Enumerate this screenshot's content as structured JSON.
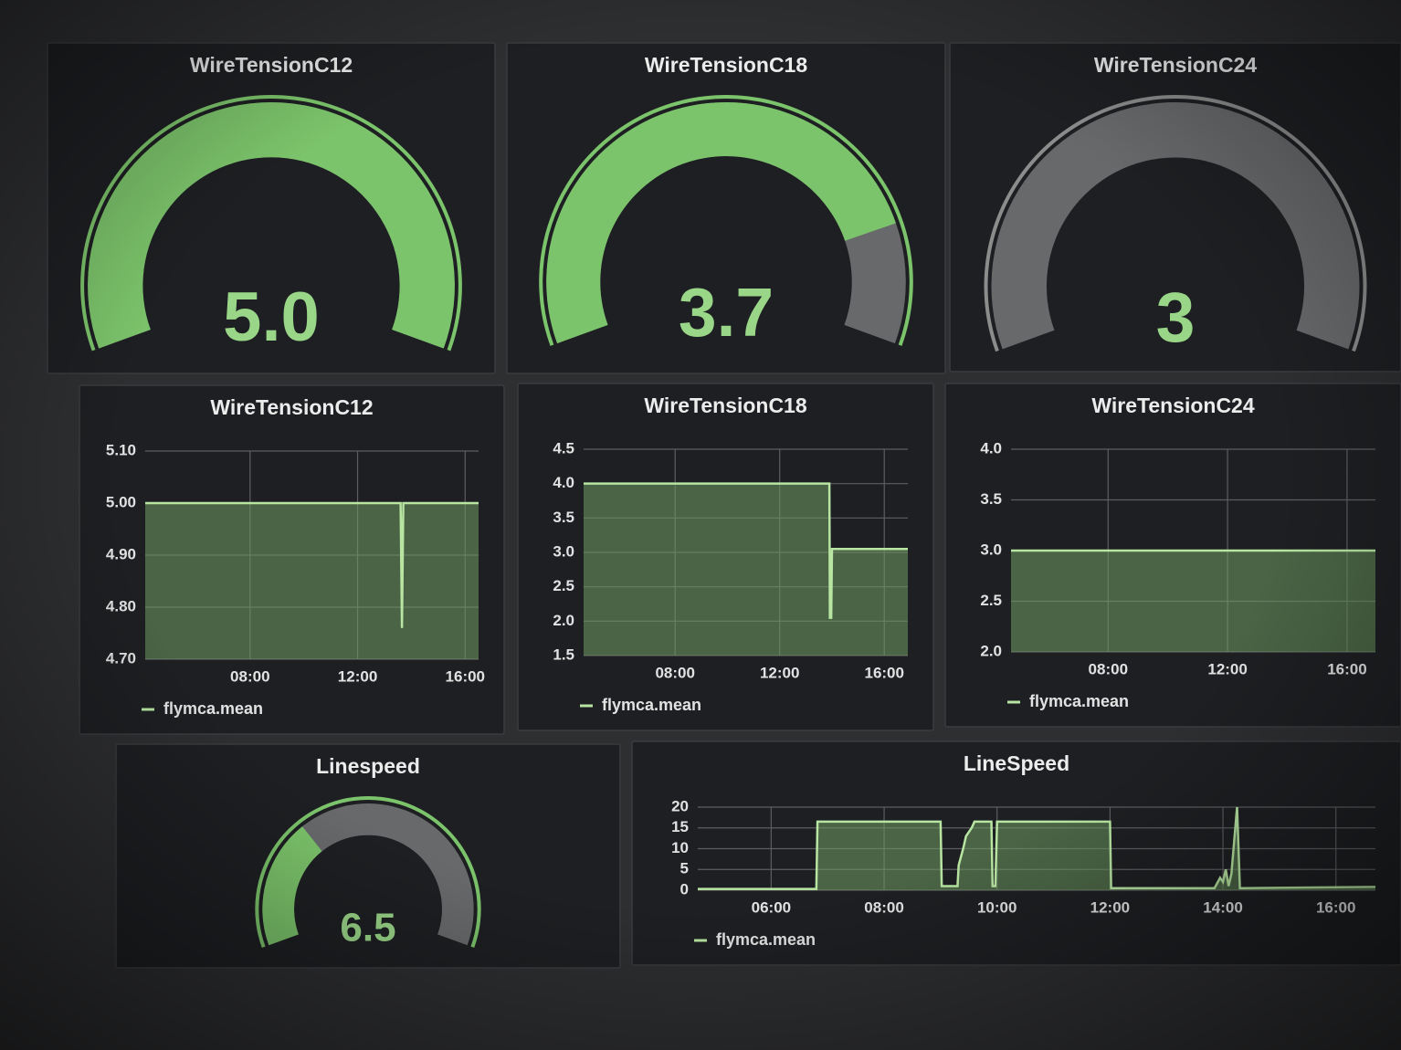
{
  "chart_data": [
    {
      "type": "gauge",
      "title": "WireTensionC12",
      "value": 5.0,
      "value_label": "5.0",
      "lim": [
        0,
        5
      ],
      "color": "#7cc46b"
    },
    {
      "type": "gauge",
      "title": "WireTensionC18",
      "value": 3.7,
      "value_label": "3.7",
      "lim": [
        0,
        4.5
      ],
      "color": "#7cc46b"
    },
    {
      "type": "gauge",
      "title": "WireTensionC24",
      "value": 3,
      "lim": [
        3,
        5
      ],
      "color": "#8c8c8c"
    },
    {
      "type": "line",
      "title": "WireTensionC12",
      "x": [
        4.1,
        13.6,
        13.65,
        13.7,
        16.5
      ],
      "series": [
        {
          "name": "flymca.mean",
          "color": "#b8e6a2",
          "values": [
            5.0,
            5.0,
            4.76,
            5.0,
            5.0
          ]
        }
      ],
      "xlim": [
        4.1,
        16.5
      ],
      "xticks": [
        {
          "value": 8,
          "label": "08:00"
        },
        {
          "value": 12,
          "label": "12:00"
        },
        {
          "value": 16,
          "label": "16:00"
        }
      ],
      "ylim": [
        4.7,
        5.1
      ],
      "yticks": [
        {
          "value": 4.7,
          "label": "4.70"
        },
        {
          "value": 4.8,
          "label": "4.80"
        },
        {
          "value": 4.9,
          "label": "4.90"
        },
        {
          "value": 5.0,
          "label": "5.00"
        },
        {
          "value": 5.1,
          "label": "5.10"
        }
      ],
      "grid": true
    },
    {
      "type": "line",
      "title": "WireTensionC18",
      "x": [
        4.5,
        13.9,
        13.92,
        13.97,
        14.0,
        16.9
      ],
      "series": [
        {
          "name": "flymca.mean",
          "color": "#b8e6a2",
          "values": [
            4.0,
            4.0,
            2.05,
            2.05,
            3.05,
            3.05
          ]
        }
      ],
      "xlim": [
        4.5,
        16.9
      ],
      "xticks": [
        {
          "value": 8,
          "label": "08:00"
        },
        {
          "value": 12,
          "label": "12:00"
        },
        {
          "value": 16,
          "label": "16:00"
        }
      ],
      "ylim": [
        1.5,
        4.5
      ],
      "yticks": [
        1.5,
        {
          "value": 2,
          "label": "2.0"
        },
        2.5,
        {
          "value": 3,
          "label": "3.0"
        },
        3.5,
        {
          "value": 4,
          "label": "4.0"
        },
        4.5
      ],
      "grid": true
    },
    {
      "type": "line",
      "title": "WireTensionC24",
      "x": [
        4.75,
        16.95
      ],
      "series": [
        {
          "name": "flymca.mean",
          "color": "#b8e6a2",
          "values": [
            3.0,
            3.0
          ]
        }
      ],
      "xlim": [
        4.75,
        16.95
      ],
      "xticks": [
        {
          "value": 8,
          "label": "08:00"
        },
        {
          "value": 12,
          "label": "12:00"
        },
        {
          "value": 16,
          "label": "16:00"
        }
      ],
      "ylim": [
        2,
        4
      ],
      "yticks": [
        {
          "value": 2,
          "label": "2.0"
        },
        2.5,
        {
          "value": 3,
          "label": "3.0"
        },
        3.5,
        {
          "value": 4,
          "label": "4.0"
        }
      ],
      "grid": true
    },
    {
      "type": "gauge",
      "title": "Linespeed",
      "value": 6.5,
      "lim": [
        0,
        20
      ],
      "color": "#7cc46b"
    },
    {
      "type": "line",
      "title": "LineSpeed",
      "x": [
        4.7,
        6.8,
        6.82,
        9.0,
        9.02,
        9.3,
        9.32,
        9.4,
        9.45,
        9.55,
        9.6,
        9.9,
        9.92,
        9.97,
        10.0,
        12.0,
        12.02,
        13.85,
        13.95,
        14.0,
        14.05,
        14.1,
        14.15,
        14.25,
        14.3,
        14.35,
        16.7
      ],
      "series": [
        {
          "name": "flymca.mean",
          "color": "#b8e6a2",
          "values": [
            0.3,
            0.3,
            16.5,
            16.5,
            1,
            1,
            6,
            10,
            13,
            15,
            16.5,
            16.5,
            1,
            1,
            16.5,
            16.5,
            0.5,
            0.5,
            3,
            2,
            5,
            1,
            4,
            20,
            0.5,
            0.5,
            0.8
          ]
        }
      ],
      "xlim": [
        4.7,
        16.7
      ],
      "xticks": [
        {
          "value": 6,
          "label": "06:00"
        },
        {
          "value": 8,
          "label": "08:00"
        },
        {
          "value": 10,
          "label": "10:00"
        },
        {
          "value": 12,
          "label": "12:00"
        },
        {
          "value": 14,
          "label": "14:00"
        },
        {
          "value": 16,
          "label": "16:00"
        }
      ],
      "ylim": [
        0,
        20
      ],
      "yticks": [
        0,
        5,
        10,
        15,
        20
      ],
      "grid": true
    }
  ]
}
